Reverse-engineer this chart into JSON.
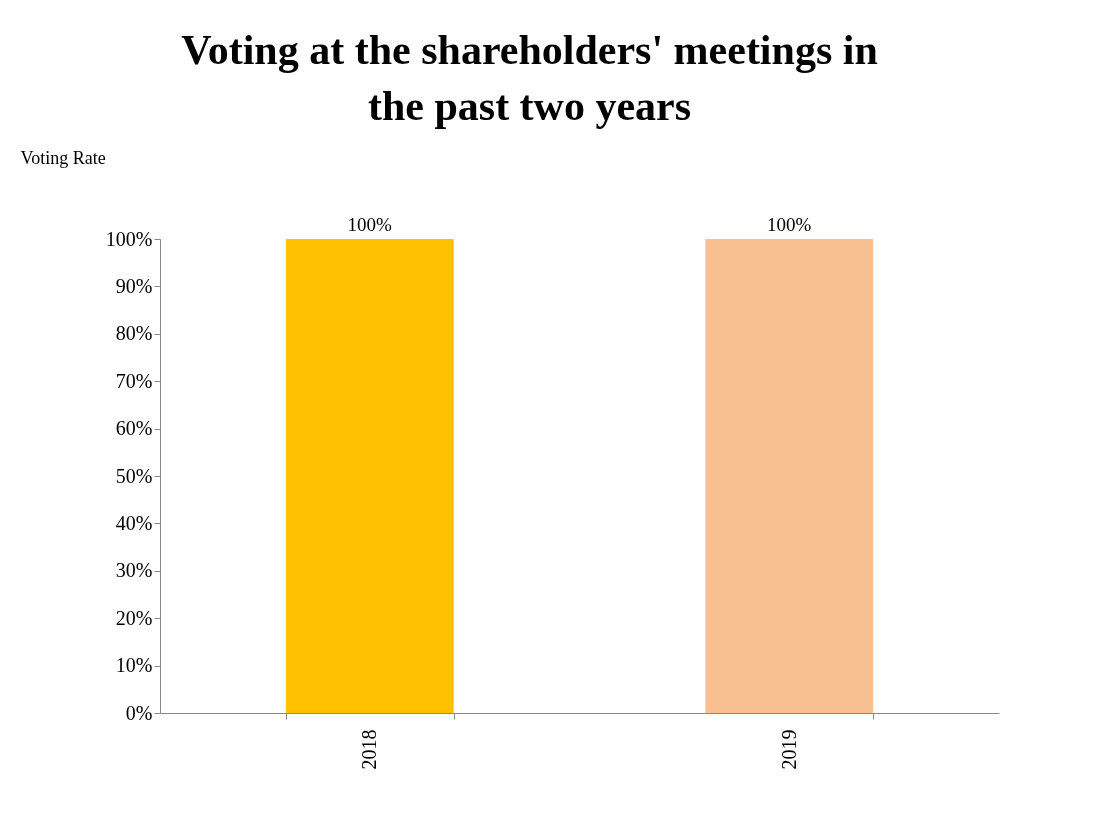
{
  "chart_data": {
    "type": "bar",
    "title": [
      "Voting at the shareholders' meetings in",
      "the past two years"
    ],
    "ylabel": "Voting Rate",
    "categories": [
      "2018",
      "2019"
    ],
    "values": [
      100,
      100
    ],
    "colors": [
      "#ffc000",
      "#f8c090"
    ],
    "value_labels": [
      "100%",
      "100%"
    ],
    "ylim": [
      0,
      100
    ],
    "yticks": [
      {
        "value": 0,
        "label": "0%"
      },
      {
        "value": 10,
        "label": "10%"
      },
      {
        "value": 20,
        "label": "20%"
      },
      {
        "value": 30,
        "label": "30%"
      },
      {
        "value": 40,
        "label": "40%"
      },
      {
        "value": 50,
        "label": "50%"
      },
      {
        "value": 60,
        "label": "60%"
      },
      {
        "value": 70,
        "label": "70%"
      },
      {
        "value": 80,
        "label": "80%"
      },
      {
        "value": 90,
        "label": "90%"
      },
      {
        "value": 100,
        "label": "100%"
      }
    ],
    "grid": false
  }
}
